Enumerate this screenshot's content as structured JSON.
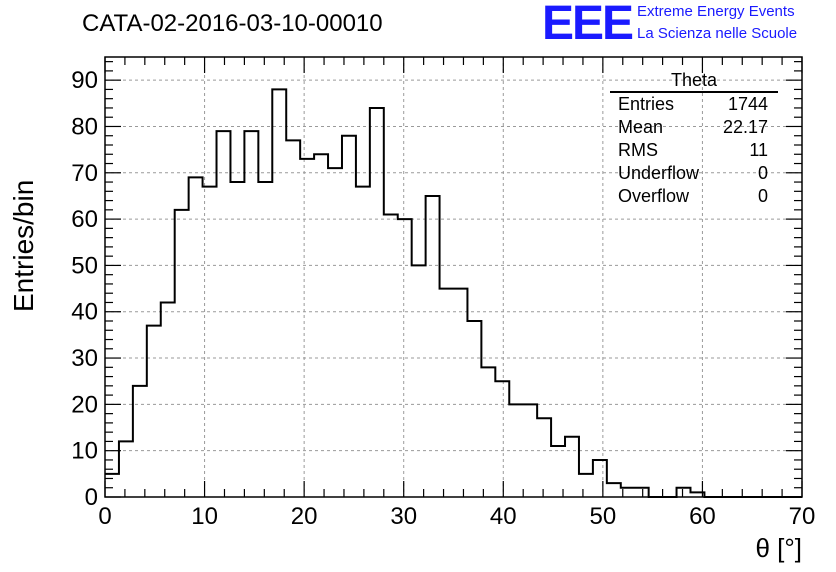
{
  "title": "CATA-02-2016-03-10-00010",
  "logo": {
    "mark": "EEE",
    "line1": "Extreme Energy Events",
    "line2": "La Scienza nelle Scuole",
    "color": "#1a1aff"
  },
  "stats": {
    "name": "Theta",
    "rows": [
      {
        "label": "Entries",
        "value": "1744"
      },
      {
        "label": "Mean",
        "value": "22.17"
      },
      {
        "label": "RMS",
        "value": "11"
      },
      {
        "label": "Underflow",
        "value": "0"
      },
      {
        "label": "Overflow",
        "value": "0"
      }
    ]
  },
  "chart_data": {
    "type": "bar",
    "style": "step-histogram",
    "title": "CATA-02-2016-03-10-00010",
    "xlabel": "θ [°]",
    "ylabel": "Entries/bin",
    "xlim": [
      0,
      70
    ],
    "ylim": [
      0,
      95
    ],
    "bin_width": 1.4,
    "bin_edges_start": 0,
    "values": [
      5,
      12,
      24,
      37,
      42,
      62,
      69,
      67,
      79,
      68,
      79,
      68,
      88,
      77,
      73,
      74,
      71,
      78,
      67,
      84,
      61,
      60,
      50,
      65,
      45,
      45,
      38,
      28,
      25,
      20,
      20,
      17,
      11,
      13,
      5,
      8,
      3,
      2,
      2,
      0,
      0,
      2,
      1,
      0,
      0,
      0,
      0,
      0,
      0,
      0
    ],
    "xticks": [
      0,
      10,
      20,
      30,
      40,
      50,
      60,
      70
    ],
    "yticks": [
      0,
      10,
      20,
      30,
      40,
      50,
      60,
      70,
      80,
      90
    ],
    "grid": true,
    "line_color": "#000000"
  }
}
